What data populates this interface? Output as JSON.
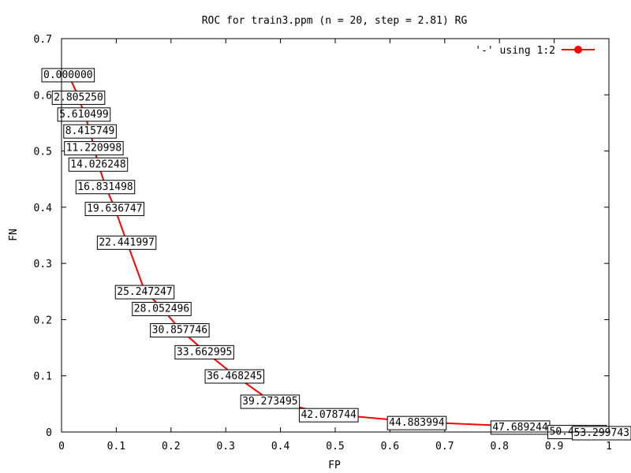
{
  "chart_data": {
    "type": "line",
    "title": "ROC for train3.ppm (n = 20, step = 2.81) RG",
    "xlabel": "FP",
    "ylabel": "FN",
    "xlim": [
      0,
      1
    ],
    "ylim": [
      0,
      0.7
    ],
    "x_ticks": [
      "0",
      "0.1",
      "0.2",
      "0.3",
      "0.4",
      "0.5",
      "0.6",
      "0.7",
      "0.8",
      "0.9",
      "1"
    ],
    "y_ticks": [
      "0",
      "0.1",
      "0.2",
      "0.3",
      "0.4",
      "0.5",
      "0.6",
      "0.7"
    ],
    "grid": false,
    "legend_position": "top-right",
    "line_color": "#ff0000",
    "series": [
      {
        "name": "'-' using 1:2",
        "points": [
          {
            "x": 0.012,
            "y": 0.637,
            "label": "0.000000"
          },
          {
            "x": 0.031,
            "y": 0.597,
            "label": "2.805250"
          },
          {
            "x": 0.041,
            "y": 0.567,
            "label": "5.610499"
          },
          {
            "x": 0.052,
            "y": 0.537,
            "label": "8.415749"
          },
          {
            "x": 0.059,
            "y": 0.507,
            "label": "11.220998"
          },
          {
            "x": 0.067,
            "y": 0.478,
            "label": "14.026248"
          },
          {
            "x": 0.08,
            "y": 0.438,
            "label": "16.831498"
          },
          {
            "x": 0.097,
            "y": 0.399,
            "label": "19.636747"
          },
          {
            "x": 0.119,
            "y": 0.339,
            "label": "22.441997"
          },
          {
            "x": 0.152,
            "y": 0.251,
            "label": "25.247247"
          },
          {
            "x": 0.183,
            "y": 0.221,
            "label": "28.052496"
          },
          {
            "x": 0.216,
            "y": 0.183,
            "label": "30.857746"
          },
          {
            "x": 0.261,
            "y": 0.144,
            "label": "33.662995"
          },
          {
            "x": 0.316,
            "y": 0.101,
            "label": "36.468245"
          },
          {
            "x": 0.381,
            "y": 0.056,
            "label": "39.273495"
          },
          {
            "x": 0.488,
            "y": 0.032,
            "label": "42.078744"
          },
          {
            "x": 0.649,
            "y": 0.018,
            "label": "44.883994"
          },
          {
            "x": 0.838,
            "y": 0.01,
            "label": "47.689244"
          },
          {
            "x": 0.942,
            "y": 0.002,
            "label": "50.494493"
          },
          {
            "x": 1.0,
            "y": 0.0,
            "label": "53.299743"
          }
        ]
      }
    ]
  }
}
